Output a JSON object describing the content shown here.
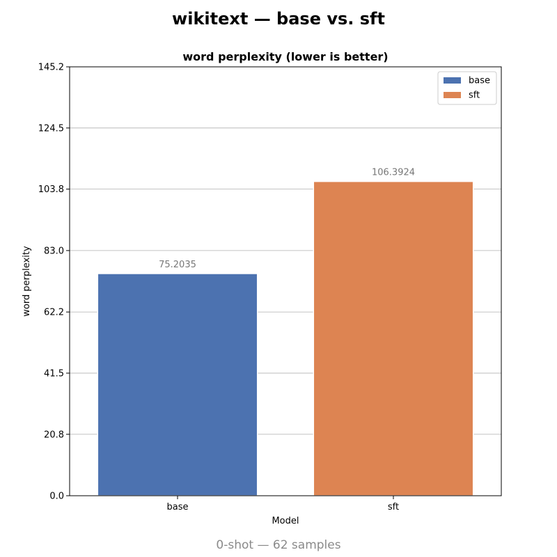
{
  "figure": {
    "suptitle": "wikitext — base vs. sft",
    "footer": "0-shot — 62 samples"
  },
  "chart_data": {
    "type": "bar",
    "title": "word perplexity (lower is better)",
    "xlabel": "Model",
    "ylabel": "word perplexity",
    "categories": [
      "base",
      "sft"
    ],
    "values": [
      75.2035,
      106.3924
    ],
    "data_labels": [
      "75.2035",
      "106.3924"
    ],
    "colors": [
      "#4c72b0",
      "#dd8452"
    ],
    "ylim": [
      0,
      145.2
    ],
    "yticks": [
      0.0,
      20.8,
      41.5,
      62.2,
      83.0,
      103.8,
      124.5,
      145.2
    ],
    "ytick_labels": [
      "0.0",
      "20.8",
      "41.5",
      "62.2",
      "83.0",
      "103.8",
      "124.5",
      "145.2"
    ],
    "grid": "y",
    "legend": {
      "placement": "top-right",
      "entries": [
        {
          "label": "base",
          "color": "#4c72b0"
        },
        {
          "label": "sft",
          "color": "#dd8452"
        }
      ]
    }
  }
}
